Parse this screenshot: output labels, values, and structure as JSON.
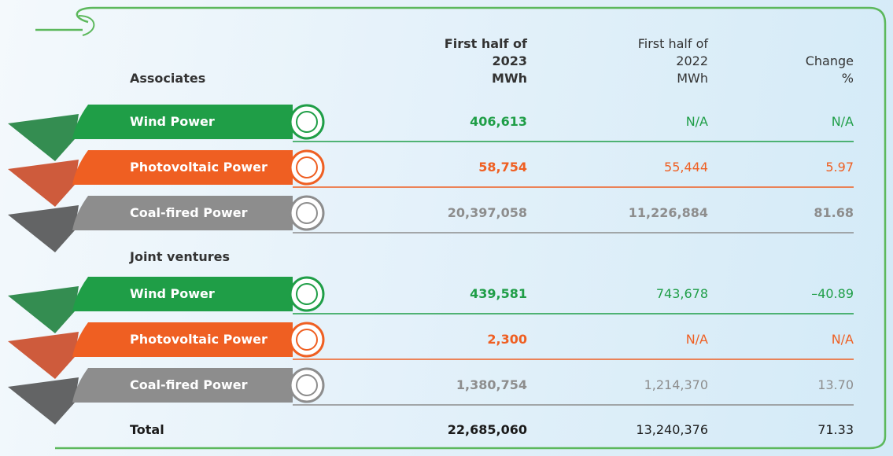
{
  "header": {
    "section_label": "Associates",
    "columns": [
      [
        "First half of",
        "2023",
        "MWh"
      ],
      [
        "First half of",
        "2022",
        "MWh"
      ],
      [
        "Change",
        "%"
      ]
    ]
  },
  "associates": {
    "rows": [
      {
        "label": "Wind Power",
        "values": [
          "406,613",
          "N/A",
          "N/A"
        ]
      },
      {
        "label": "Photovoltaic Power",
        "values": [
          "58,754",
          "55,444",
          "5.97"
        ]
      },
      {
        "label": "Coal-fired Power",
        "values": [
          "20,397,058",
          "11,226,884",
          "81.68"
        ]
      }
    ]
  },
  "joint_ventures": {
    "title": "Joint ventures",
    "rows": [
      {
        "label": "Wind Power",
        "values": [
          "439,581",
          "743,678",
          "–40.89"
        ]
      },
      {
        "label": "Photovoltaic Power",
        "values": [
          "2,300",
          "N/A",
          "N/A"
        ]
      },
      {
        "label": "Coal-fired Power",
        "values": [
          "1,380,754",
          "1,214,370",
          "13.70"
        ]
      }
    ]
  },
  "total": {
    "label": "Total",
    "values": [
      "22,685,060",
      "13,240,376",
      "71.33"
    ]
  }
}
